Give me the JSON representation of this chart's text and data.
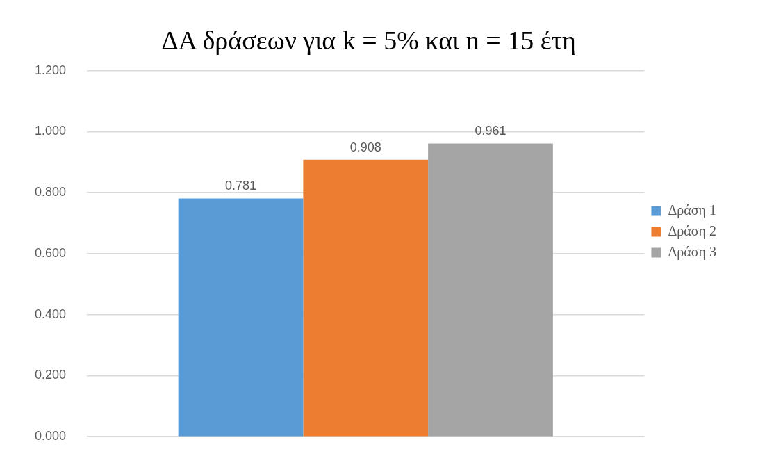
{
  "chart_data": {
    "type": "bar",
    "title": "ΔΑ δράσεων για k = 5% και n = 15 έτη",
    "categories": [
      null
    ],
    "series": [
      {
        "name": "Δράση 1",
        "color": "#5b9bd5",
        "values": [
          0.781
        ]
      },
      {
        "name": "Δράση 2",
        "color": "#ed7d31",
        "values": [
          0.908
        ]
      },
      {
        "name": "Δράση 3",
        "color": "#a5a5a5",
        "values": [
          0.961
        ]
      }
    ],
    "ylim": [
      0,
      1.2
    ],
    "yticks": [
      {
        "value": 0,
        "label": "0.000"
      },
      {
        "value": 0.2,
        "label": "0.200"
      },
      {
        "value": 0.4,
        "label": "0.400"
      },
      {
        "value": 0.6,
        "label": "0.600"
      },
      {
        "value": 0.8,
        "label": "0.800"
      },
      {
        "value": 1,
        "label": "1.000"
      },
      {
        "value": 1.2,
        "label": "1.200"
      }
    ],
    "grid": "y",
    "legend": "right",
    "data_labels": true
  }
}
